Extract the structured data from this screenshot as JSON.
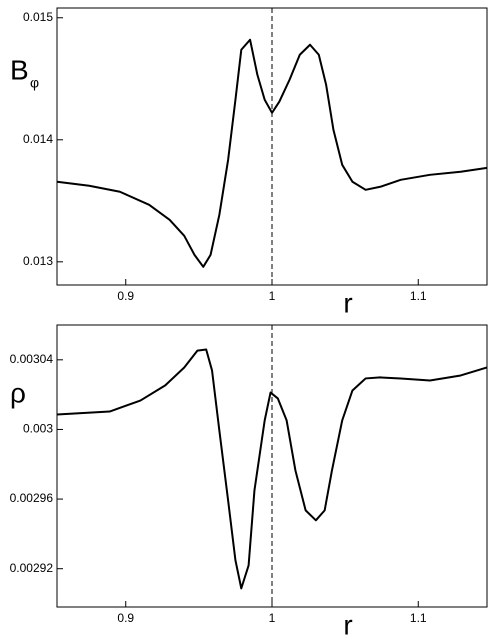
{
  "chart_data": [
    {
      "type": "line",
      "ylabel": "B",
      "ylabel_sub": "φ",
      "xlabel": "r",
      "vline": 1,
      "xlim": [
        0.853,
        1.147
      ],
      "xticks": [
        0.9,
        1,
        1.1
      ],
      "ylim": [
        0.01281,
        0.01508
      ],
      "yticks": [
        0.013,
        0.014,
        0.015
      ],
      "x": [
        0.853,
        0.875,
        0.896,
        0.916,
        0.93,
        0.94,
        0.947,
        0.953,
        0.958,
        0.964,
        0.97,
        0.975,
        0.979,
        0.985,
        0.99,
        0.995,
        1.0,
        1.005,
        1.012,
        1.019,
        1.026,
        1.032,
        1.037,
        1.042,
        1.048,
        1.055,
        1.064,
        1.074,
        1.088,
        1.108,
        1.129,
        1.147
      ],
      "series": [
        {
          "color": "#000000",
          "values": [
            0.013656,
            0.013623,
            0.013574,
            0.013467,
            0.013344,
            0.013213,
            0.013057,
            0.012959,
            0.013057,
            0.013385,
            0.013836,
            0.014328,
            0.014738,
            0.01482,
            0.014533,
            0.014328,
            0.014221,
            0.014312,
            0.014492,
            0.014697,
            0.014779,
            0.014697,
            0.014451,
            0.014082,
            0.013795,
            0.013656,
            0.01359,
            0.013615,
            0.013672,
            0.013713,
            0.013738,
            0.01377
          ]
        }
      ]
    },
    {
      "type": "line",
      "ylabel": "ρ",
      "xlabel": "r",
      "vline": 1,
      "xlim": [
        0.853,
        1.147
      ],
      "xticks": [
        0.9,
        1,
        1.1
      ],
      "ylim": [
        0.002898,
        0.00306
      ],
      "yticks": [
        0.00292,
        0.00296,
        0.003,
        0.00304
      ],
      "x": [
        0.853,
        0.889,
        0.91,
        0.927,
        0.94,
        0.949,
        0.955,
        0.959,
        0.964,
        0.97,
        0.975,
        0.979,
        0.984,
        0.988,
        0.995,
        0.999,
        1.004,
        1.01,
        1.016,
        1.023,
        1.03,
        1.036,
        1.041,
        1.048,
        1.055,
        1.064,
        1.074,
        1.088,
        1.108,
        1.129,
        1.147
      ],
      "series": [
        {
          "color": "#000000",
          "values": [
            0.0030086,
            0.0030103,
            0.0030166,
            0.0030253,
            0.0030356,
            0.0030453,
            0.0030459,
            0.0030339,
            0.0029994,
            0.0029592,
            0.0029248,
            0.0029087,
            0.0029219,
            0.002965,
            0.0030052,
            0.0030212,
            0.0030178,
            0.0030052,
            0.0029765,
            0.0029535,
            0.0029478,
            0.0029535,
            0.0029765,
            0.0030052,
            0.0030224,
            0.0030293,
            0.0030299,
            0.0030293,
            0.0030281,
            0.003031,
            0.0030356
          ]
        }
      ]
    }
  ]
}
